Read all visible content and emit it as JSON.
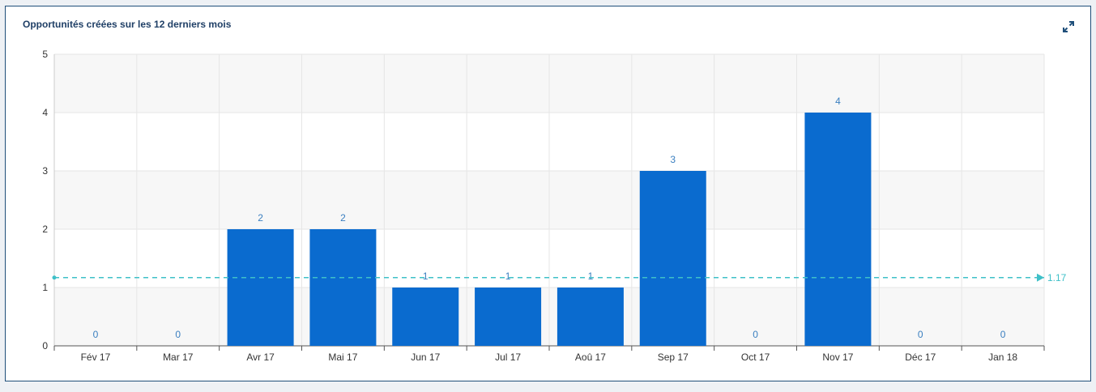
{
  "widget": {
    "title": "Opportunités créées sur les 12 derniers mois",
    "expand_icon": "expand-arrows-icon"
  },
  "colors": {
    "bar": "#0a6bcf",
    "data_label": "#3a7fc0",
    "average_line": "#3fc0c8",
    "grid": "#e6e6e6",
    "band_alt": "#f7f7f7",
    "axis": "#555555",
    "tick_text": "#333333"
  },
  "chart_data": {
    "type": "bar",
    "categories": [
      "Fév 17",
      "Mar 17",
      "Avr 17",
      "Mai 17",
      "Jun 17",
      "Jul 17",
      "Aoû 17",
      "Sep 17",
      "Oct 17",
      "Nov 17",
      "Déc 17",
      "Jan 18"
    ],
    "values": [
      0,
      0,
      2,
      2,
      1,
      1,
      1,
      3,
      0,
      4,
      0,
      0
    ],
    "ylim": [
      0,
      5
    ],
    "yticks": [
      0,
      1,
      2,
      3,
      4,
      5
    ],
    "average": 1.17,
    "average_label": "1.17",
    "title": "",
    "xlabel": "",
    "ylabel": "",
    "grid": true,
    "data_labels": true
  }
}
